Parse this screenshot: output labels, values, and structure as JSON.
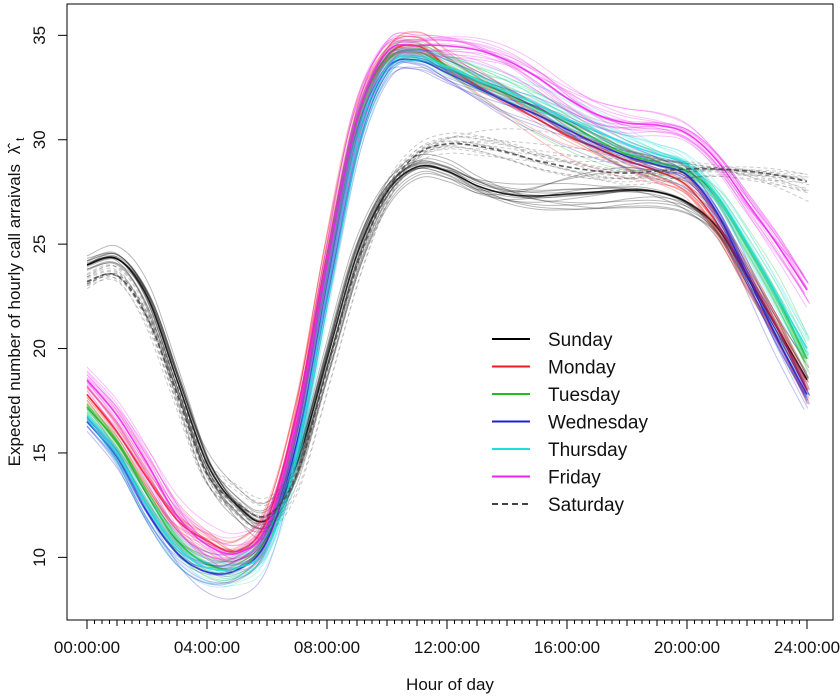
{
  "chart_data": {
    "type": "line",
    "title": "",
    "xlabel": "Hour of day",
    "ylabel": "Expected number of hourly call arraivals",
    "ylabel_symbol": "λ̂",
    "ylabel_subscript": "t",
    "xlim": [
      0,
      24
    ],
    "ylim": [
      7,
      36.5
    ],
    "x_ticks": [
      {
        "value": 0,
        "label": "00:00:00"
      },
      {
        "value": 4,
        "label": "04:00:00"
      },
      {
        "value": 8,
        "label": "08:00:00"
      },
      {
        "value": 12,
        "label": "12:00:00"
      },
      {
        "value": 16,
        "label": "16:00:00"
      },
      {
        "value": 20,
        "label": "20:00:00"
      },
      {
        "value": 24,
        "label": "24:00:00"
      }
    ],
    "y_ticks": [
      {
        "value": 10,
        "label": "10"
      },
      {
        "value": 15,
        "label": "15"
      },
      {
        "value": 20,
        "label": "20"
      },
      {
        "value": 25,
        "label": "25"
      },
      {
        "value": 30,
        "label": "30"
      },
      {
        "value": 35,
        "label": "35"
      }
    ],
    "grid": false,
    "legend_position": "center-right",
    "x": [
      0,
      1,
      2,
      3,
      4,
      5,
      6,
      7,
      8,
      9,
      10,
      11,
      12,
      13,
      14,
      15,
      16,
      17,
      18,
      19,
      20,
      21,
      22,
      23,
      24
    ],
    "series": [
      {
        "name": "Sunday",
        "color": "#000000",
        "dash": "solid",
        "values": [
          24.0,
          24.3,
          22.5,
          18.5,
          14.5,
          12.5,
          11.8,
          14.5,
          19.5,
          24.5,
          27.5,
          28.7,
          28.5,
          27.8,
          27.4,
          27.3,
          27.4,
          27.5,
          27.6,
          27.5,
          27.0,
          25.8,
          23.5,
          21.0,
          18.5
        ]
      },
      {
        "name": "Monday",
        "color": "#ee1c1c",
        "dash": "solid",
        "values": [
          17.8,
          16.0,
          13.8,
          11.8,
          10.8,
          10.3,
          11.8,
          17.0,
          24.5,
          31.0,
          34.0,
          34.5,
          33.5,
          32.6,
          31.8,
          31.0,
          30.2,
          29.6,
          29.0,
          28.5,
          27.8,
          26.0,
          23.5,
          21.0,
          18.0
        ]
      },
      {
        "name": "Tuesday",
        "color": "#22bb22",
        "dash": "solid",
        "values": [
          17.2,
          15.5,
          13.0,
          10.8,
          9.7,
          9.5,
          11.0,
          16.0,
          23.5,
          30.5,
          33.8,
          34.2,
          33.5,
          32.8,
          32.2,
          31.5,
          30.8,
          30.0,
          29.3,
          28.9,
          28.5,
          27.3,
          25.0,
          22.5,
          19.5
        ]
      },
      {
        "name": "Wednesday",
        "color": "#2020cc",
        "dash": "solid",
        "values": [
          16.5,
          14.8,
          12.2,
          10.2,
          9.3,
          9.4,
          10.8,
          15.5,
          23.0,
          30.0,
          33.4,
          33.8,
          33.2,
          32.5,
          31.8,
          31.2,
          30.5,
          29.8,
          29.2,
          28.8,
          28.3,
          26.5,
          23.5,
          20.5,
          17.8
        ]
      },
      {
        "name": "Thursday",
        "color": "#22dddd",
        "dash": "solid",
        "values": [
          16.8,
          15.0,
          12.5,
          10.5,
          9.5,
          9.5,
          10.5,
          15.0,
          22.8,
          30.0,
          33.5,
          34.0,
          33.5,
          32.9,
          32.3,
          31.7,
          31.0,
          30.4,
          29.8,
          29.3,
          28.8,
          27.3,
          25.0,
          22.5,
          20.0
        ]
      },
      {
        "name": "Friday",
        "color": "#ee22ee",
        "dash": "solid",
        "values": [
          18.5,
          16.8,
          14.5,
          12.0,
          10.6,
          10.2,
          11.5,
          16.5,
          24.0,
          31.0,
          34.2,
          34.5,
          34.5,
          34.3,
          33.8,
          33.0,
          32.0,
          31.2,
          30.8,
          30.7,
          30.3,
          29.0,
          27.0,
          25.0,
          22.8
        ]
      },
      {
        "name": "Saturday",
        "color": "#444444",
        "dash": "dashed",
        "values": [
          23.2,
          23.5,
          21.5,
          17.8,
          14.0,
          12.6,
          12.0,
          14.0,
          19.0,
          24.0,
          27.5,
          29.3,
          29.8,
          29.7,
          29.4,
          29.0,
          28.7,
          28.5,
          28.4,
          28.5,
          28.6,
          28.6,
          28.5,
          28.3,
          28.0
        ]
      }
    ]
  }
}
